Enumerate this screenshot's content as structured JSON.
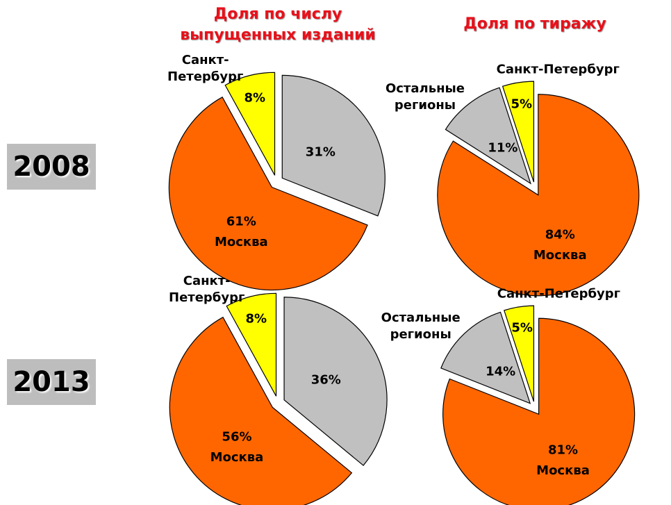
{
  "column_titles": [
    "Доля по числу выпущенных изданий",
    "Доля по тиражу"
  ],
  "row_labels": [
    "2008",
    "2013"
  ],
  "chart_data": [
    {
      "type": "pie",
      "categories": [
        null,
        "Москва",
        "Санкт-Петербург"
      ],
      "values": [
        31,
        61,
        8
      ],
      "value_labels": [
        "31%",
        "61%",
        "8%"
      ],
      "colors": [
        "#c0c0c0",
        "#ff6600",
        "#ffff00"
      ]
    },
    {
      "type": "pie",
      "categories": [
        "Москва",
        "Остальные регионы",
        "Санкт-Петербург"
      ],
      "values": [
        84,
        11,
        5
      ],
      "value_labels": [
        "84%",
        "11%",
        "5%"
      ],
      "colors": [
        "#ff6600",
        "#c0c0c0",
        "#ffff00"
      ]
    },
    {
      "type": "pie",
      "categories": [
        null,
        "Москва",
        "Санкт-Петербург"
      ],
      "values": [
        36,
        56,
        8
      ],
      "value_labels": [
        "36%",
        "56%",
        "8%"
      ],
      "colors": [
        "#c0c0c0",
        "#ff6600",
        "#ffff00"
      ]
    },
    {
      "type": "pie",
      "categories": [
        "Москва",
        "Остальные регионы",
        "Санкт-Петербург"
      ],
      "values": [
        81,
        14,
        5
      ],
      "value_labels": [
        "81%",
        "14%",
        "5%"
      ],
      "colors": [
        "#ff6600",
        "#c0c0c0",
        "#ffff00"
      ]
    }
  ]
}
